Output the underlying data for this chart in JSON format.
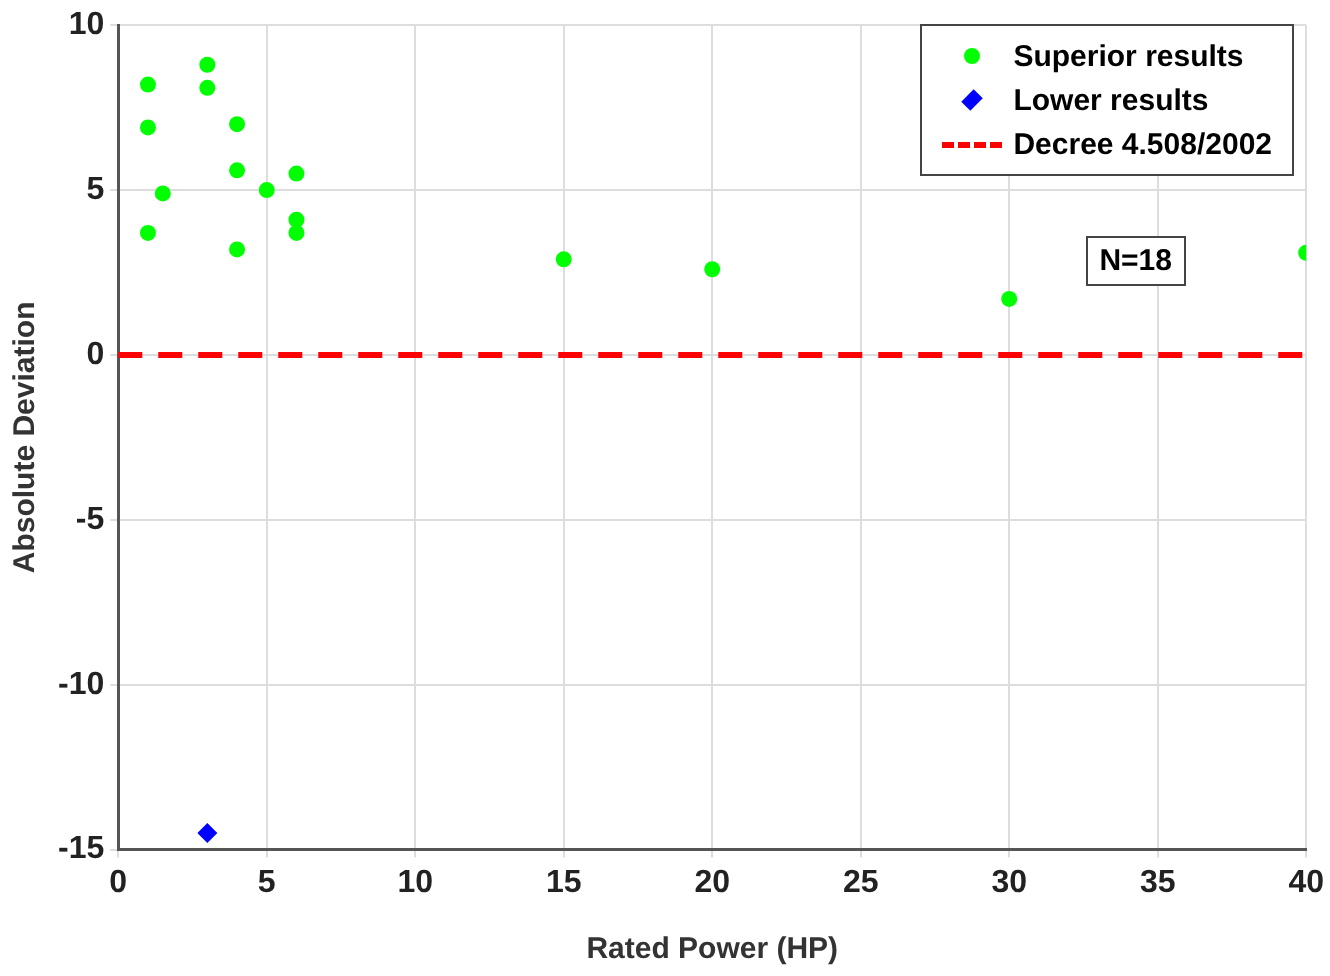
{
  "chart_data": {
    "type": "scatter",
    "xlabel": "Rated Power (HP)",
    "ylabel": "Absolute Deviation",
    "xlim": [
      0,
      40
    ],
    "xticks": [
      0,
      5,
      10,
      15,
      20,
      25,
      30,
      35,
      40
    ],
    "ylim": [
      -15,
      10
    ],
    "yticks": [
      -15,
      -10,
      -5,
      0,
      5,
      10
    ],
    "grid": true,
    "legend": "top right",
    "series": [
      {
        "name": "Superior results",
        "color": "#00ff00",
        "marker": "circle",
        "x": [
          1,
          1,
          1,
          1.5,
          3,
          3,
          4,
          4,
          4,
          5,
          6,
          6,
          6,
          15,
          20,
          30,
          40
        ],
        "values": [
          8.2,
          6.9,
          3.7,
          4.9,
          8.8,
          8.1,
          7.0,
          5.6,
          3.2,
          5.0,
          5.5,
          4.1,
          3.7,
          2.9,
          2.6,
          1.7,
          3.1
        ]
      },
      {
        "name": "Lower results",
        "color": "#0000ff",
        "marker": "diamond",
        "x": [
          3
        ],
        "values": [
          -14.5
        ]
      }
    ],
    "ref_lines": [
      {
        "axis": "y",
        "value": 0,
        "label": "Decree 4.508/2002",
        "color": "#ff0000",
        "line_style": "dashed"
      }
    ],
    "annotations": [
      "N=18"
    ]
  }
}
